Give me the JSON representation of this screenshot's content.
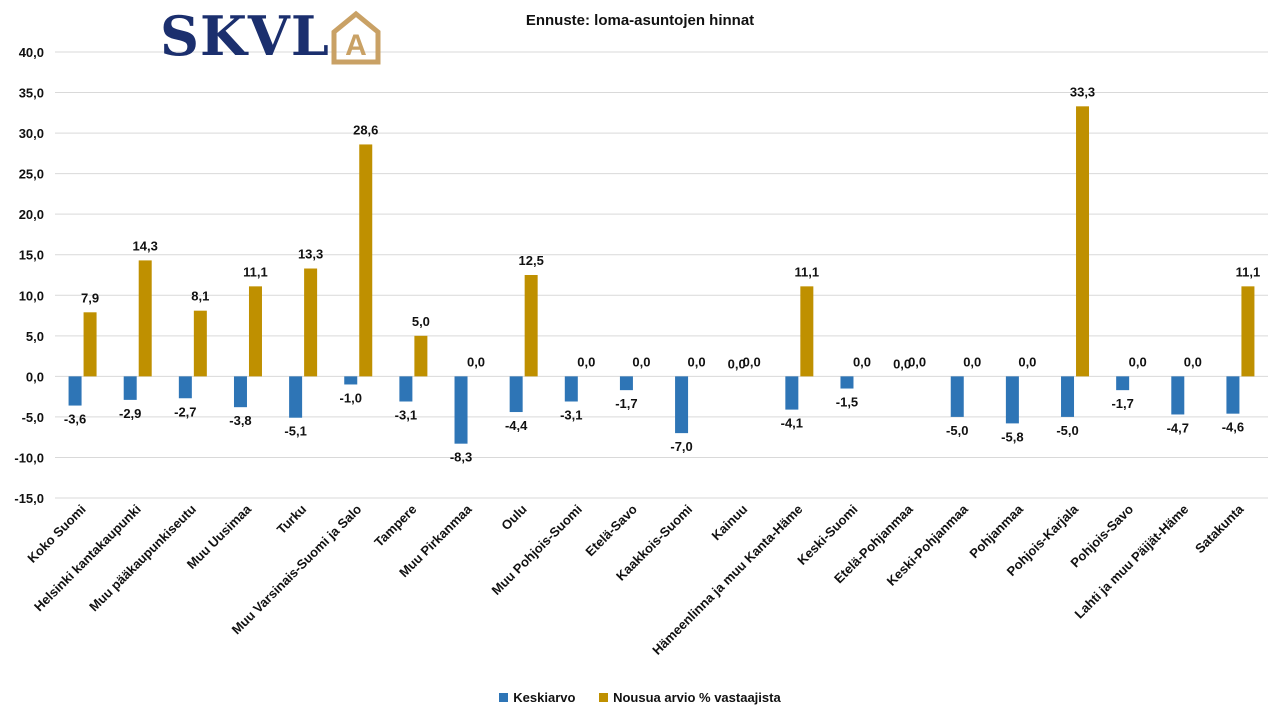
{
  "logo": {
    "text": "SKVL",
    "mark_letter": "A",
    "color_text": "#1b2f6e",
    "color_mark": "#c9a165"
  },
  "chart_data": {
    "type": "bar",
    "title": "Ennuste: loma-asuntojen hinnat",
    "xlabel": "",
    "ylabel": "",
    "ylim": [
      -15,
      40
    ],
    "yticks": [
      -15,
      -10,
      -5,
      0,
      5,
      10,
      15,
      20,
      25,
      30,
      35,
      40
    ],
    "ytick_labels": [
      "-15,0",
      "-10,0",
      "-5,0",
      "0,0",
      "5,0",
      "10,0",
      "15,0",
      "20,0",
      "25,0",
      "30,0",
      "35,0",
      "40,0"
    ],
    "grid": true,
    "legend_position": "bottom",
    "categories": [
      "Koko Suomi",
      "Helsinki kantakaupunki",
      "Muu pääkaupunkiseutu",
      "Muu Uusimaa",
      "Turku",
      "Muu Varsinais-Suomi ja Salo",
      "Tampere",
      "Muu Pirkanmaa",
      "Oulu",
      "Muu Pohjois-Suomi",
      "Etelä-Savo",
      "Kaakkois-Suomi",
      "Kainuu",
      "Hämeenlinna ja muu Kanta-Häme",
      "Keski-Suomi",
      "Etelä-Pohjanmaa",
      "Keski-Pohjanmaa",
      "Pohjanmaa",
      "Pohjois-Karjala",
      "Pohjois-Savo",
      "Lahti ja muu Päijät-Häme",
      "Satakunta"
    ],
    "series": [
      {
        "name": "Keskiarvo",
        "color": "#2e75b6",
        "values": [
          -3.6,
          -2.9,
          -2.7,
          -3.8,
          -5.1,
          -1.0,
          -3.1,
          -8.3,
          -4.4,
          -3.1,
          -1.7,
          -7.0,
          0.0,
          -4.1,
          -1.5,
          0.0,
          -5.0,
          -5.8,
          -5.0,
          -1.7,
          -4.7,
          -4.6
        ],
        "labels": [
          "-3,6",
          "-2,9",
          "-2,7",
          "-3,8",
          "-5,1",
          "-1,0",
          "-3,1",
          "-8,3",
          "-4,4",
          "-3,1",
          "-1,7",
          "-7,0",
          "0,0",
          "-4,1",
          "-1,5",
          "0,0",
          "-5,0",
          "-5,8",
          "-5,0",
          "-1,7",
          "-4,7",
          "-4,6"
        ]
      },
      {
        "name": "Nousua arvio % vastaajista",
        "color": "#bf9000",
        "values": [
          7.9,
          14.3,
          8.1,
          11.1,
          13.3,
          28.6,
          5.0,
          0.0,
          12.5,
          0.0,
          0.0,
          0.0,
          0.0,
          11.1,
          0.0,
          0.0,
          0.0,
          0.0,
          33.3,
          0.0,
          0.0,
          11.1
        ],
        "labels": [
          "7,9",
          "14,3",
          "8,1",
          "11,1",
          "13,3",
          "28,6",
          "5,0",
          "0,0",
          "12,5",
          "0,0",
          "0,0",
          "0,0",
          "0,0",
          "11,1",
          "0,0",
          "0,0",
          "0,0",
          "0,0",
          "33,3",
          "0,0",
          "0,0",
          "11,1"
        ]
      }
    ]
  }
}
